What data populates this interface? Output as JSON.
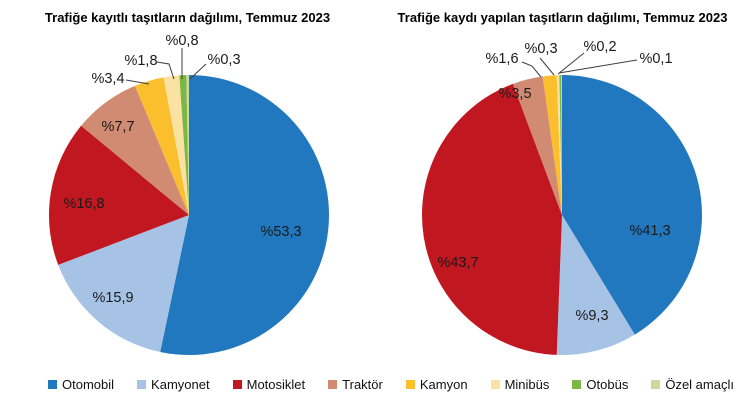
{
  "figure": {
    "background": "#ffffff",
    "label_color": "#1a1a1a",
    "leader_line_color": "#3d3d3d"
  },
  "legend": {
    "position": "bottom",
    "items": [
      {
        "label": "Otomobil",
        "color": "#2178BE"
      },
      {
        "label": "Kamyonet",
        "color": "#A6C3E6"
      },
      {
        "label": "Motosiklet",
        "color": "#C01721"
      },
      {
        "label": "Traktör",
        "color": "#D08B72"
      },
      {
        "label": "Kamyon",
        "color": "#FBBF2D"
      },
      {
        "label": "Minibüs",
        "color": "#FAE3A2"
      },
      {
        "label": "Otobüs",
        "color": "#7CB645"
      },
      {
        "label": "Özel amaçlı",
        "color": "#CBDA9E"
      }
    ]
  },
  "chart_data": [
    {
      "type": "pie",
      "title": "Trafiğe kayıtlı taşıtların dağılımı, Temmuz 2023",
      "categories": [
        "Otomobil",
        "Kamyonet",
        "Motosiklet",
        "Traktör",
        "Kamyon",
        "Minibüs",
        "Otobüs",
        "Özel amaçlı"
      ],
      "values": [
        53.3,
        15.9,
        16.8,
        7.7,
        3.4,
        1.8,
        0.8,
        0.3
      ],
      "labels": [
        "%53,3",
        "%15,9",
        "%16,8",
        "%7,7",
        "%3,4",
        "%1,8",
        "%0,8",
        "%0,3"
      ],
      "colors": [
        "#2178BE",
        "#A6C3E6",
        "#C01721",
        "#D08B72",
        "#FBBF2D",
        "#FAE3A2",
        "#7CB645",
        "#CBDA9E"
      ],
      "unit": "percent",
      "start_angle_deg": 0,
      "direction": "clockwise",
      "legend_position": "bottom"
    },
    {
      "type": "pie",
      "title": "Trafiğe kaydı yapılan taşıtların dağılımı, Temmuz 2023",
      "categories": [
        "Otomobil",
        "Kamyonet",
        "Motosiklet",
        "Traktör",
        "Kamyon",
        "Minibüs",
        "Otobüs",
        "Özel amaçlı"
      ],
      "values": [
        41.3,
        9.3,
        43.7,
        3.5,
        1.6,
        0.3,
        0.2,
        0.1
      ],
      "labels": [
        "%41,3",
        "%9,3",
        "%43,7",
        "%3,5",
        "%1,6",
        "%0,3",
        "%0,2",
        "%0,1"
      ],
      "colors": [
        "#2178BE",
        "#A6C3E6",
        "#C01721",
        "#D08B72",
        "#FBBF2D",
        "#FAE3A2",
        "#7CB645",
        "#CBDA9E"
      ],
      "unit": "percent",
      "start_angle_deg": 0,
      "direction": "clockwise",
      "legend_position": "bottom"
    }
  ]
}
